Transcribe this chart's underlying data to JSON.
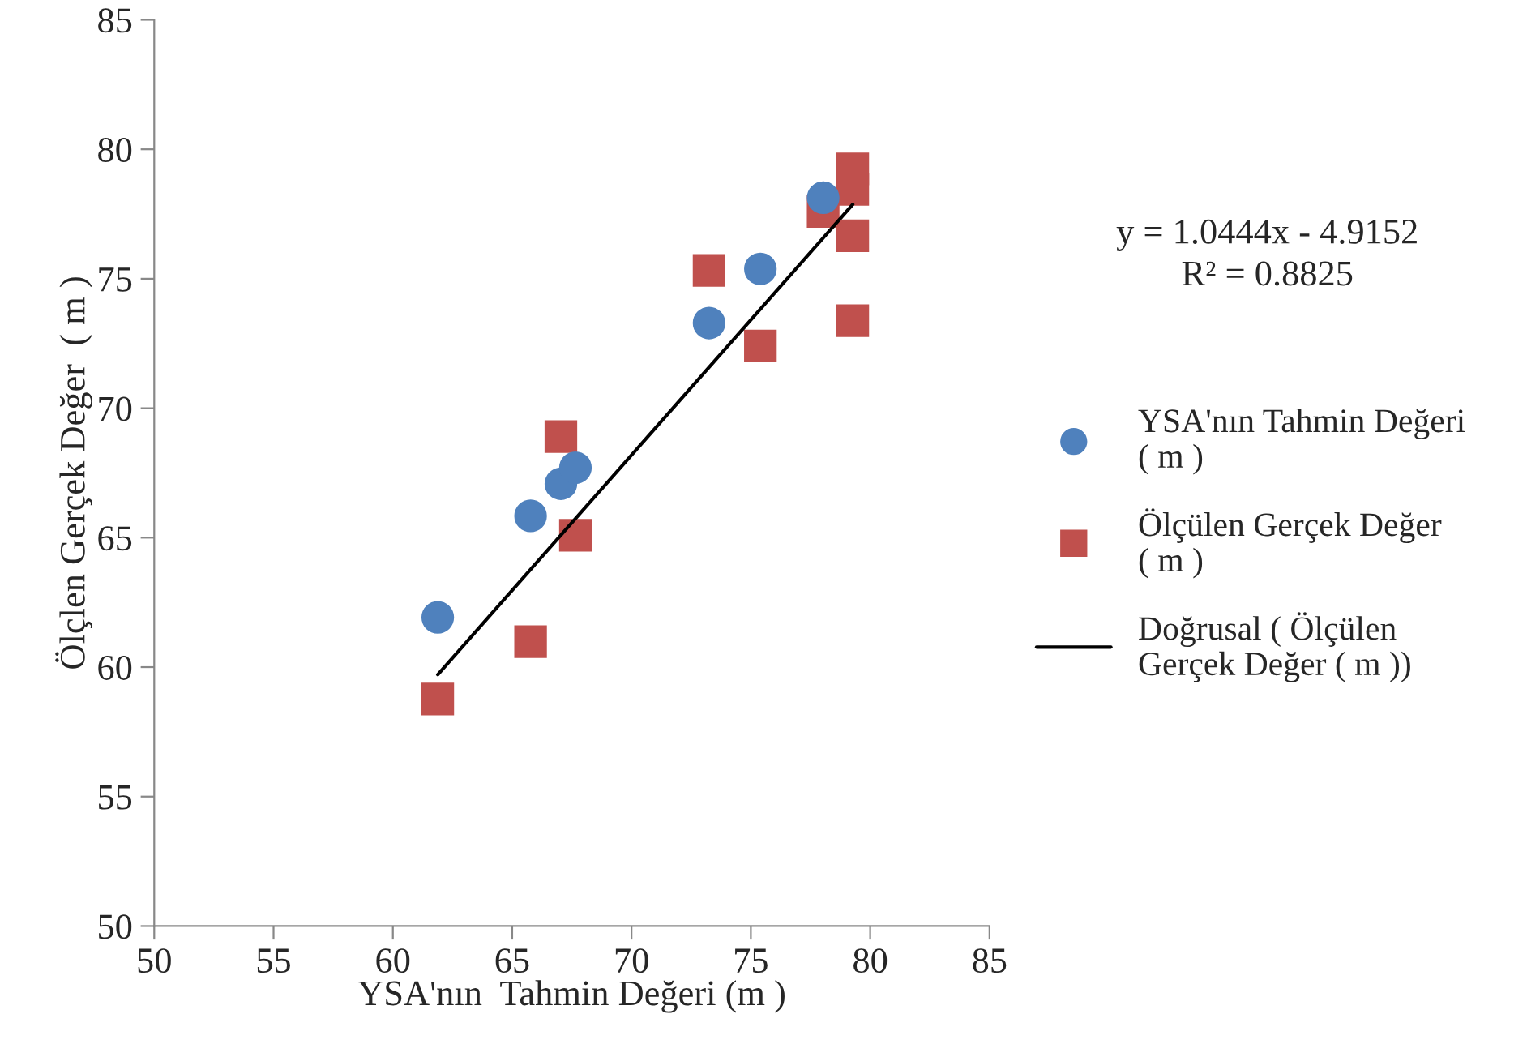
{
  "chart_data": {
    "type": "scatter",
    "xlabel": "YSA'nın  Tahmin Değeri (m )",
    "ylabel": "Ölçlen Gerçek Değer  ( m )",
    "xlim": [
      50,
      85
    ],
    "xticks": [
      50,
      55,
      60,
      65,
      70,
      75,
      80,
      85
    ],
    "ylim": [
      50,
      85
    ],
    "yticks": [
      50,
      55,
      60,
      65,
      70,
      75,
      80,
      85
    ],
    "grid": false,
    "legend": "right",
    "annotations": [
      "y = 1.0444x - 4.9152",
      "R² = 0.8825"
    ],
    "series": [
      {
        "name": "YSA'nın Tahmin Değeri ( m )",
        "marker": "circle",
        "color": "#4f81bd",
        "x": [
          61.88,
          65.77,
          67.04,
          67.65,
          73.25,
          75.4,
          78.03
        ],
        "values": [
          61.92,
          65.84,
          67.08,
          67.7,
          73.29,
          75.38,
          78.13
        ]
      },
      {
        "name": " Ölçülen Gerçek Değer ( m )",
        "marker": "square",
        "color": "#c0504d",
        "x": [
          61.88,
          65.77,
          67.04,
          67.65,
          73.25,
          75.4,
          78.03,
          79.27,
          79.27,
          79.27,
          79.27
        ],
        "values": [
          58.77,
          60.98,
          68.9,
          65.09,
          75.32,
          72.4,
          77.6,
          79.24,
          78.45,
          76.66,
          73.38
        ]
      },
      {
        "name": "Doğrusal ( Ölçülen Gerçek Değer ( m ))",
        "type": "line",
        "marker": "none",
        "line_style": "solid",
        "color": "#000000",
        "x": [
          61.88,
          79.27
        ],
        "values": [
          59.71,
          77.87
        ]
      }
    ]
  }
}
